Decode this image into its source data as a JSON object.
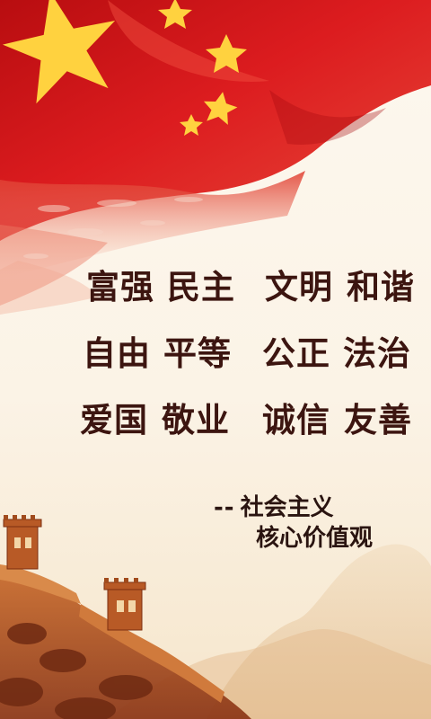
{
  "values": {
    "rows": [
      [
        "富强",
        "民主",
        "文明",
        "和谐"
      ],
      [
        "自由",
        "平等",
        "公正",
        "法治"
      ],
      [
        "爱国",
        "敬业",
        "诚信",
        "友善"
      ]
    ]
  },
  "attribution": {
    "dash": "--",
    "line1": "社会主义",
    "line2": "核心价值观"
  },
  "colors": {
    "flag_red": "#d7141a",
    "star_yellow": "#ffd23f",
    "text": "#3c1510",
    "background": "#fbf3e6"
  },
  "icons": [
    "flag-stars-icon",
    "great-wall-illustration"
  ]
}
